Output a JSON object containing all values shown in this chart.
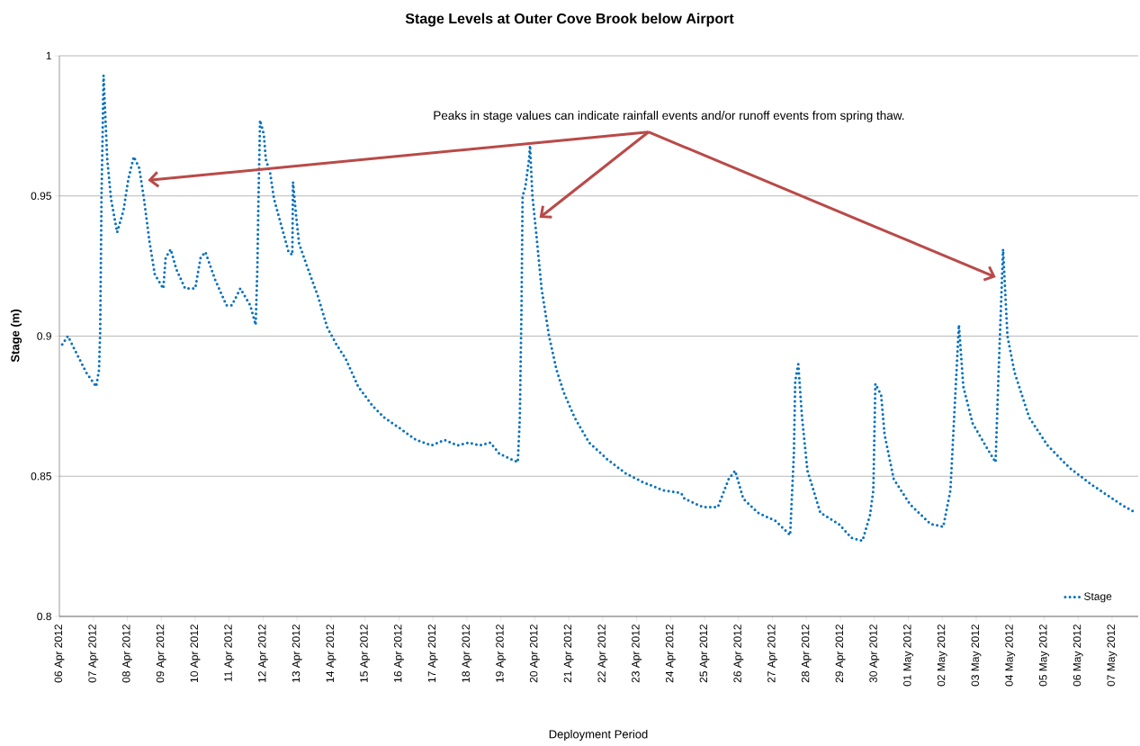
{
  "chart_data": {
    "type": "line",
    "title": "Stage Levels at Outer Cove Brook below Airport",
    "xlabel": "Deployment  Period",
    "ylabel": "Stage (m)",
    "annotations": [
      "Peaks in stage values can indicate rainfall events and/or runoff events from spring thaw."
    ],
    "xlim": [
      "2012-04-06",
      "2012-05-07T18:30"
    ],
    "ylim": [
      0.8,
      1
    ],
    "yticks": [
      0.8,
      0.85,
      0.9,
      0.95,
      1
    ],
    "xticks": [
      {
        "value": "2012-04-06",
        "label": "06 Apr 2012"
      },
      {
        "value": "2012-04-07",
        "label": "07 Apr 2012"
      },
      {
        "value": "2012-04-08",
        "label": "08 Apr 2012"
      },
      {
        "value": "2012-04-09",
        "label": "09 Apr 2012"
      },
      {
        "value": "2012-04-10",
        "label": "10 Apr 2012"
      },
      {
        "value": "2012-04-11",
        "label": "11 Apr 2012"
      },
      {
        "value": "2012-04-12",
        "label": "12 Apr 2012"
      },
      {
        "value": "2012-04-13",
        "label": "13 Apr 2012"
      },
      {
        "value": "2012-04-14",
        "label": "14 Apr 2012"
      },
      {
        "value": "2012-04-15",
        "label": "15 Apr 2012"
      },
      {
        "value": "2012-04-16",
        "label": "16 Apr 2012"
      },
      {
        "value": "2012-04-17",
        "label": "17 Apr 2012"
      },
      {
        "value": "2012-04-18",
        "label": "18 Apr 2012"
      },
      {
        "value": "2012-04-19",
        "label": "19 Apr 2012"
      },
      {
        "value": "2012-04-20",
        "label": "20 Apr 2012"
      },
      {
        "value": "2012-04-21",
        "label": "21 Apr 2012"
      },
      {
        "value": "2012-04-22",
        "label": "22 Apr 2012"
      },
      {
        "value": "2012-04-23",
        "label": "23 Apr 2012"
      },
      {
        "value": "2012-04-24",
        "label": "24 Apr 2012"
      },
      {
        "value": "2012-04-25",
        "label": "25 Apr 2012"
      },
      {
        "value": "2012-04-26",
        "label": "26 Apr 2012"
      },
      {
        "value": "2012-04-27",
        "label": "27 Apr 2012"
      },
      {
        "value": "2012-04-28",
        "label": "28 Apr 2012"
      },
      {
        "value": "2012-04-29",
        "label": "29 Apr 2012"
      },
      {
        "value": "2012-04-30",
        "label": "30 Apr 2012"
      },
      {
        "value": "2012-05-01",
        "label": "01 May 2012"
      },
      {
        "value": "2012-05-02",
        "label": "02 May 2012"
      },
      {
        "value": "2012-05-03",
        "label": "03 May 2012"
      },
      {
        "value": "2012-05-04",
        "label": "04 May 2012"
      },
      {
        "value": "2012-05-05",
        "label": "05 May 2012"
      },
      {
        "value": "2012-05-06",
        "label": "06 May 2012"
      },
      {
        "value": "2012-05-07",
        "label": "07 May 2012"
      }
    ],
    "grid": "y",
    "legend": "bottom right",
    "marker": "none",
    "line_style": "dotted",
    "series": [
      {
        "name": "Stage",
        "color": "#0070c0",
        "x": [
          "2012-04-06T02:00",
          "2012-04-06T06:00",
          "2012-04-06T12:00",
          "2012-04-06T19:00",
          "2012-04-07T02:00",
          "2012-04-07T04:00",
          "2012-04-07T04:48",
          "2012-04-07T05:17",
          "2012-04-07T05:46",
          "2012-04-07T06:29",
          "2012-04-07T07:12",
          "2012-04-07T09:50",
          "2012-04-07T12:29",
          "2012-04-07T16:48",
          "2012-04-07T21:22",
          "2012-04-08T00:43",
          "2012-04-08T04:34",
          "2012-04-08T08:24",
          "2012-04-08T11:46",
          "2012-04-08T15:36",
          "2012-04-08T19:26",
          "2012-04-09T01:26",
          "2012-04-09T03:07",
          "2012-04-09T06:43",
          "2012-04-09T10:34",
          "2012-04-09T16:48",
          "2012-04-10T00:00",
          "2012-04-10T03:50",
          "2012-04-10T07:12",
          "2012-04-10T14:10",
          "2012-04-10T22:05",
          "2012-04-11T01:55",
          "2012-04-11T07:55",
          "2012-04-11T14:53",
          "2012-04-11T18:43",
          "2012-04-11T19:55",
          "2012-04-11T20:38",
          "2012-04-11T21:50",
          "2012-04-12T00:29",
          "2012-04-12T01:55",
          "2012-04-12T05:02",
          "2012-04-12T07:41",
          "2012-04-12T14:10",
          "2012-04-12T18:00",
          "2012-04-12T20:38",
          "2012-04-12T21:07",
          "2012-04-12T23:17",
          "2012-04-13T01:26",
          "2012-04-13T06:58",
          "2012-04-13T14:53",
          "2012-04-13T21:22",
          "2012-04-14T03:50",
          "2012-04-14T10:19",
          "2012-04-14T19:12",
          "2012-04-15T05:31",
          "2012-04-15T13:26",
          "2012-04-16T00:58",
          "2012-04-16T12:00",
          "2012-04-16T23:02",
          "2012-04-17T08:10",
          "2012-04-17T17:17",
          "2012-04-18T00:58",
          "2012-04-18T08:53",
          "2012-04-18T16:34",
          "2012-04-18T23:02",
          "2012-04-19T12:00",
          "2012-04-19T13:26",
          "2012-04-19T14:38",
          "2012-04-19T15:22",
          "2012-04-19T17:17",
          "2012-04-19T19:55",
          "2012-04-19T20:38",
          "2012-04-19T22:19",
          "2012-04-20T00:58",
          "2012-04-20T04:48",
          "2012-04-20T10:05",
          "2012-04-20T15:22",
          "2012-04-20T20:24",
          "2012-04-21T04:05",
          "2012-04-21T14:24",
          "2012-04-22T03:22",
          "2012-04-22T16:19",
          "2012-04-23T04:05",
          "2012-04-23T18:29",
          "2012-04-24T07:26",
          "2012-04-24T09:50",
          "2012-04-24T22:48",
          "2012-04-25T09:22",
          "2012-04-25T17:02",
          "2012-04-25T21:36",
          "2012-04-26T03:22",
          "2012-04-26T13:41",
          "2012-04-27T02:24",
          "2012-04-27T12:29",
          "2012-04-27T15:07",
          "2012-04-27T16:05",
          "2012-04-27T18:14",
          "2012-04-27T20:53",
          "2012-04-28T00:43",
          "2012-04-28T09:50",
          "2012-04-28T22:48",
          "2012-04-29T07:55",
          "2012-04-29T15:36",
          "2012-04-29T20:53",
          "2012-04-29T23:17",
          "2012-04-30T00:43",
          "2012-04-30T04:48",
          "2012-04-30T07:12",
          "2012-04-30T13:41",
          "2012-05-01T01:12",
          "2012-05-01T15:36",
          "2012-05-02T00:43",
          "2012-05-02T05:46",
          "2012-05-02T08:24",
          "2012-05-02T11:46",
          "2012-05-02T14:53",
          "2012-05-02T21:22",
          "2012-05-03T06:29",
          "2012-05-03T13:41",
          "2012-05-03T15:36",
          "2012-05-03T18:58",
          "2012-05-03T22:05",
          "2012-05-04T03:07",
          "2012-05-04T13:26",
          "2012-05-05T02:24",
          "2012-05-05T18:00",
          "2012-05-06T09:36",
          "2012-05-07T06:14",
          "2012-05-07T16:34"
        ],
        "values": [
          0.897,
          0.9,
          0.894,
          0.887,
          0.882,
          0.888,
          0.901,
          0.924,
          0.95,
          0.97,
          0.993,
          0.963,
          0.949,
          0.937,
          0.945,
          0.956,
          0.964,
          0.96,
          0.949,
          0.934,
          0.922,
          0.917,
          0.928,
          0.931,
          0.924,
          0.917,
          0.917,
          0.928,
          0.93,
          0.92,
          0.911,
          0.911,
          0.917,
          0.911,
          0.904,
          0.924,
          0.947,
          0.977,
          0.972,
          0.963,
          0.958,
          0.949,
          0.937,
          0.93,
          0.929,
          0.955,
          0.943,
          0.933,
          0.925,
          0.914,
          0.903,
          0.897,
          0.892,
          0.882,
          0.875,
          0.871,
          0.867,
          0.863,
          0.861,
          0.863,
          0.861,
          0.862,
          0.861,
          0.862,
          0.858,
          0.855,
          0.871,
          0.911,
          0.95,
          0.953,
          0.963,
          0.968,
          0.95,
          0.937,
          0.917,
          0.9,
          0.888,
          0.88,
          0.871,
          0.862,
          0.856,
          0.851,
          0.848,
          0.845,
          0.844,
          0.842,
          0.839,
          0.839,
          0.849,
          0.852,
          0.842,
          0.837,
          0.834,
          0.829,
          0.858,
          0.884,
          0.89,
          0.871,
          0.852,
          0.837,
          0.833,
          0.828,
          0.827,
          0.836,
          0.845,
          0.883,
          0.879,
          0.865,
          0.849,
          0.84,
          0.833,
          0.832,
          0.845,
          0.871,
          0.904,
          0.882,
          0.869,
          0.861,
          0.855,
          0.884,
          0.931,
          0.9,
          0.887,
          0.871,
          0.861,
          0.853,
          0.847,
          0.84,
          0.837
        ]
      }
    ]
  }
}
